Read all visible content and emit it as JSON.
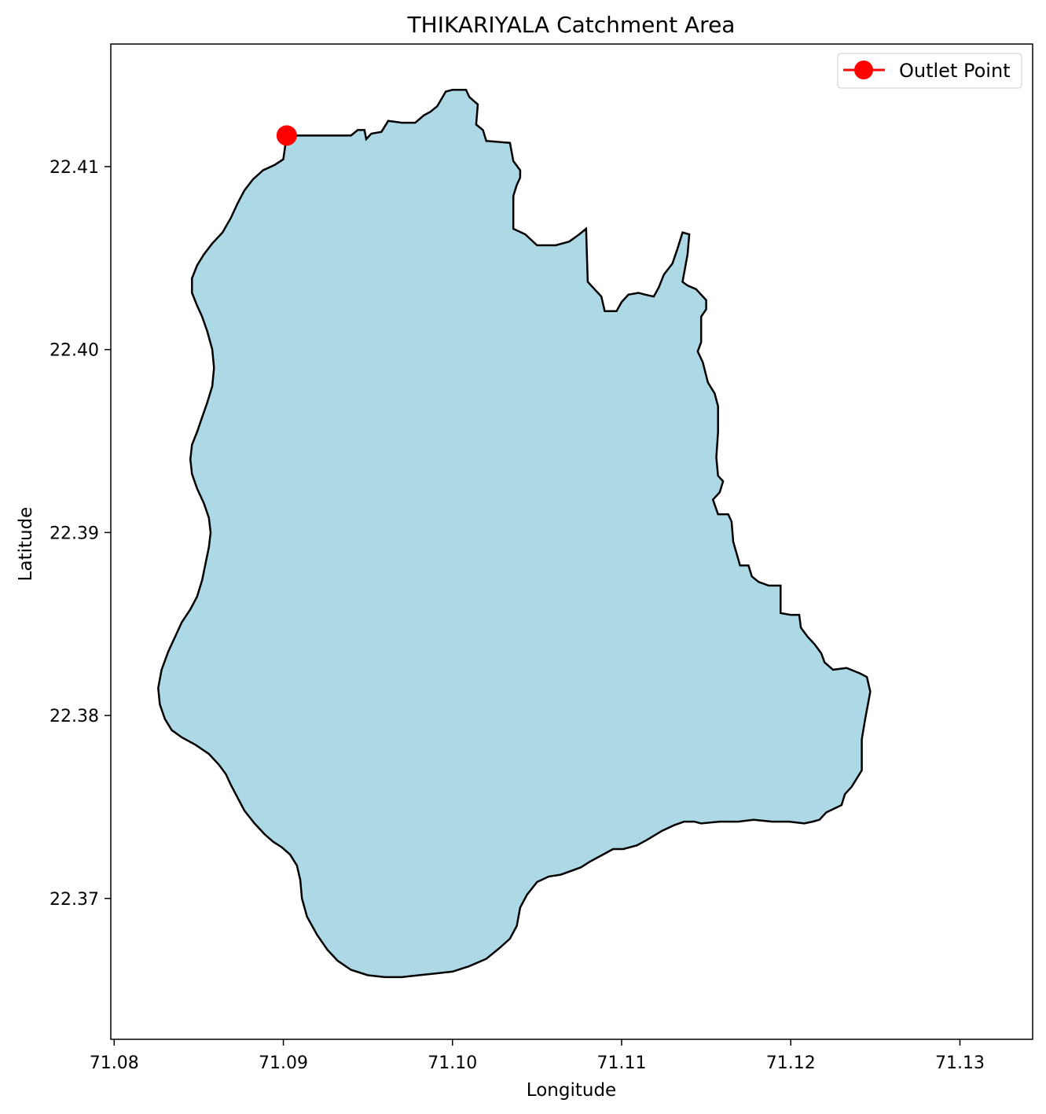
{
  "title": "THIKARIYALA Catchment Area",
  "xlabel": "Longitude",
  "ylabel": "Latitude",
  "legend": {
    "label": "Outlet Point",
    "placement": "top-right"
  },
  "colors": {
    "fill": "#add8e6",
    "edge": "#000000",
    "outlet": "#ff0000"
  },
  "chart_data": {
    "type": "map",
    "title": "THIKARIYALA Catchment Area",
    "xlabel": "Longitude",
    "ylabel": "Latitude",
    "xlim": [
      71.0798,
      71.1343
    ],
    "ylim": [
      22.3623,
      22.4167
    ],
    "xticks": [
      "71.08",
      "71.09",
      "71.10",
      "71.11",
      "71.12",
      "71.13"
    ],
    "yticks": [
      "22.37",
      "22.38",
      "22.39",
      "22.40",
      "22.41"
    ],
    "grid": false,
    "outlet": {
      "name": "Outlet Point",
      "lon": 71.0902,
      "lat": 22.4117
    },
    "boundary": [
      [
        71.0902,
        22.4117
      ],
      [
        71.094,
        22.4117
      ],
      [
        71.0944,
        22.412
      ],
      [
        71.0948,
        22.412
      ],
      [
        71.0949,
        22.4115
      ],
      [
        71.0952,
        22.4118
      ],
      [
        71.0958,
        22.4119
      ],
      [
        71.0962,
        22.4125
      ],
      [
        71.097,
        22.4124
      ],
      [
        71.0978,
        22.4124
      ],
      [
        71.0983,
        22.4128
      ],
      [
        71.0987,
        22.413
      ],
      [
        71.0991,
        22.4133
      ],
      [
        71.0996,
        22.4141
      ],
      [
        71.1,
        22.4142
      ],
      [
        71.1008,
        22.4142
      ],
      [
        71.101,
        22.4138
      ],
      [
        71.1015,
        22.4134
      ],
      [
        71.1014,
        22.4123
      ],
      [
        71.1018,
        22.412
      ],
      [
        71.102,
        22.4114
      ],
      [
        71.1034,
        22.4113
      ],
      [
        71.1036,
        22.4103
      ],
      [
        71.104,
        22.4098
      ],
      [
        71.104,
        22.4094
      ],
      [
        71.1038,
        22.409
      ],
      [
        71.1036,
        22.4084
      ],
      [
        71.1036,
        22.4066
      ],
      [
        71.1043,
        22.4063
      ],
      [
        71.105,
        22.4057
      ],
      [
        71.1061,
        22.4057
      ],
      [
        71.1069,
        22.4059
      ],
      [
        71.1075,
        22.4063
      ],
      [
        71.1079,
        22.4066
      ],
      [
        71.108,
        22.4037
      ],
      [
        71.1085,
        22.4032
      ],
      [
        71.1088,
        22.4029
      ],
      [
        71.109,
        22.4021
      ],
      [
        71.1097,
        22.4021
      ],
      [
        71.11,
        22.4026
      ],
      [
        71.1104,
        22.403
      ],
      [
        71.111,
        22.4031
      ],
      [
        71.1114,
        22.403
      ],
      [
        71.1119,
        22.4029
      ],
      [
        71.1122,
        22.4034
      ],
      [
        71.1125,
        22.4041
      ],
      [
        71.113,
        22.4047
      ],
      [
        71.1133,
        22.4055
      ],
      [
        71.1136,
        22.4064
      ],
      [
        71.114,
        22.4063
      ],
      [
        71.1139,
        22.4052
      ],
      [
        71.1136,
        22.4037
      ],
      [
        71.1139,
        22.4035
      ],
      [
        71.1144,
        22.4033
      ],
      [
        71.115,
        22.4027
      ],
      [
        71.115,
        22.4022
      ],
      [
        71.1147,
        22.4018
      ],
      [
        71.1147,
        22.4004
      ],
      [
        71.1145,
        22.3999
      ],
      [
        71.1148,
        22.3993
      ],
      [
        71.1151,
        22.3982
      ],
      [
        71.1155,
        22.3976
      ],
      [
        71.1157,
        22.3969
      ],
      [
        71.1157,
        22.3955
      ],
      [
        71.1156,
        22.3941
      ],
      [
        71.1157,
        22.3931
      ],
      [
        71.116,
        22.3928
      ],
      [
        71.1158,
        22.3922
      ],
      [
        71.1154,
        22.3918
      ],
      [
        71.1157,
        22.391
      ],
      [
        71.1163,
        22.391
      ],
      [
        71.1165,
        22.3906
      ],
      [
        71.1166,
        22.3895
      ],
      [
        71.117,
        22.3882
      ],
      [
        71.1175,
        22.3882
      ],
      [
        71.1177,
        22.3876
      ],
      [
        71.1181,
        22.3873
      ],
      [
        71.1187,
        22.3871
      ],
      [
        71.1194,
        22.3871
      ],
      [
        71.1194,
        22.3856
      ],
      [
        71.12,
        22.3855
      ],
      [
        71.1205,
        22.3855
      ],
      [
        71.1206,
        22.3848
      ],
      [
        71.121,
        22.3843
      ],
      [
        71.1214,
        22.3839
      ],
      [
        71.1218,
        22.3834
      ],
      [
        71.122,
        22.3829
      ],
      [
        71.1225,
        22.3825
      ],
      [
        71.1233,
        22.3826
      ],
      [
        71.1241,
        22.3823
      ],
      [
        71.1245,
        22.3821
      ],
      [
        71.1247,
        22.3813
      ],
      [
        71.1244,
        22.3798
      ],
      [
        71.1242,
        22.3787
      ],
      [
        71.1242,
        22.377
      ],
      [
        71.1236,
        22.3761
      ],
      [
        71.1232,
        22.3757
      ],
      [
        71.123,
        22.3751
      ],
      [
        71.1221,
        22.3747
      ],
      [
        71.1217,
        22.3743
      ],
      [
        71.1213,
        22.3742
      ],
      [
        71.1208,
        22.3741
      ],
      [
        71.1199,
        22.3742
      ],
      [
        71.1189,
        22.3742
      ],
      [
        71.1178,
        22.3743
      ],
      [
        71.1169,
        22.3742
      ],
      [
        71.1158,
        22.3742
      ],
      [
        71.1147,
        22.3741
      ],
      [
        71.1143,
        22.3742
      ],
      [
        71.1137,
        22.3742
      ],
      [
        71.1131,
        22.374
      ],
      [
        71.1124,
        22.3737
      ],
      [
        71.1115,
        22.3732
      ],
      [
        71.1109,
        22.3729
      ],
      [
        71.1101,
        22.3727
      ],
      [
        71.1095,
        22.3727
      ],
      [
        71.1089,
        22.3724
      ],
      [
        71.1081,
        22.372
      ],
      [
        71.1076,
        22.3717
      ],
      [
        71.107,
        22.3715
      ],
      [
        71.1064,
        22.3713
      ],
      [
        71.1057,
        22.3712
      ],
      [
        71.105,
        22.3709
      ],
      [
        71.1044,
        22.3702
      ],
      [
        71.104,
        22.3695
      ],
      [
        71.1038,
        22.3685
      ],
      [
        71.1034,
        22.3678
      ],
      [
        71.1028,
        22.3673
      ],
      [
        71.102,
        22.3667
      ],
      [
        71.101,
        22.3663
      ],
      [
        71.1,
        22.366
      ],
      [
        71.099,
        22.3659
      ],
      [
        71.098,
        22.3658
      ],
      [
        71.097,
        22.3657
      ],
      [
        71.096,
        22.3657
      ],
      [
        71.095,
        22.3658
      ],
      [
        71.094,
        22.3661
      ],
      [
        71.0932,
        22.3666
      ],
      [
        71.0926,
        22.3672
      ],
      [
        71.092,
        22.368
      ],
      [
        71.0914,
        22.369
      ],
      [
        71.0911,
        22.37
      ],
      [
        71.091,
        22.371
      ],
      [
        71.0908,
        22.3718
      ],
      [
        71.0904,
        22.3724
      ],
      [
        71.0899,
        22.3728
      ],
      [
        71.0894,
        22.3731
      ],
      [
        71.0889,
        22.3735
      ],
      [
        71.0883,
        22.3741
      ],
      [
        71.0877,
        22.3748
      ],
      [
        71.0873,
        22.3755
      ],
      [
        71.0869,
        22.3762
      ],
      [
        71.0866,
        22.3768
      ],
      [
        71.0862,
        22.3773
      ],
      [
        71.0856,
        22.3779
      ],
      [
        71.0848,
        22.3784
      ],
      [
        71.084,
        22.3788
      ],
      [
        71.0834,
        22.3792
      ],
      [
        71.083,
        22.3798
      ],
      [
        71.0827,
        22.3806
      ],
      [
        71.0826,
        22.3815
      ],
      [
        71.0828,
        22.3825
      ],
      [
        71.0832,
        22.3835
      ],
      [
        71.0836,
        22.3843
      ],
      [
        71.084,
        22.3851
      ],
      [
        71.0845,
        22.3858
      ],
      [
        71.0849,
        22.3865
      ],
      [
        71.0852,
        22.3874
      ],
      [
        71.0854,
        22.3883
      ],
      [
        71.0856,
        22.3892
      ],
      [
        71.0857,
        22.39
      ],
      [
        71.0856,
        22.3908
      ],
      [
        71.0853,
        22.3916
      ],
      [
        71.0849,
        22.3924
      ],
      [
        71.0846,
        22.3932
      ],
      [
        71.0845,
        22.394
      ],
      [
        71.0846,
        22.3948
      ],
      [
        71.0849,
        22.3955
      ],
      [
        71.0852,
        22.3963
      ],
      [
        71.0855,
        22.3971
      ],
      [
        71.0858,
        22.398
      ],
      [
        71.0859,
        22.399
      ],
      [
        71.0858,
        22.4
      ],
      [
        71.0855,
        22.401
      ],
      [
        71.0852,
        22.4018
      ],
      [
        71.0849,
        22.4024
      ],
      [
        71.0846,
        22.4031
      ],
      [
        71.0846,
        22.4039
      ],
      [
        71.0849,
        22.4046
      ],
      [
        71.0853,
        22.4052
      ],
      [
        71.0858,
        22.4058
      ],
      [
        71.0864,
        22.4064
      ],
      [
        71.0869,
        22.4072
      ],
      [
        71.0873,
        22.408
      ],
      [
        71.0877,
        22.4087
      ],
      [
        71.0882,
        22.4093
      ],
      [
        71.0888,
        22.4098
      ],
      [
        71.0895,
        22.4101
      ],
      [
        71.09,
        22.4104
      ],
      [
        71.0902,
        22.4117
      ]
    ]
  }
}
